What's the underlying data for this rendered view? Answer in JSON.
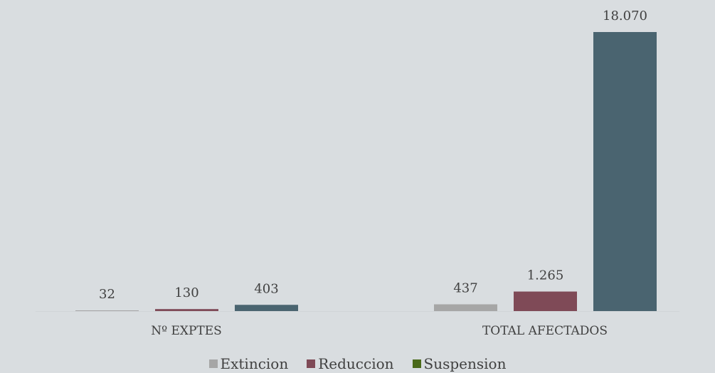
{
  "chart_data": {
    "type": "bar",
    "categories": [
      "Nº EXPTES",
      "TOTAL AFECTADOS"
    ],
    "series": [
      {
        "name": "Extincion",
        "color": "#a6a6a6",
        "values": [
          32,
          437
        ],
        "labels": [
          "32",
          "437"
        ]
      },
      {
        "name": "Reduccion",
        "color": "#7f4a57",
        "values": [
          130,
          1265
        ],
        "labels": [
          "130",
          "1.265"
        ]
      },
      {
        "name": "Suspension",
        "color": "#4a6470",
        "values": [
          403,
          18070
        ],
        "labels": [
          "403",
          "18.070"
        ]
      }
    ],
    "legend_colors": [
      "#a6a6a6",
      "#7f4a57",
      "#4a6a1a"
    ],
    "ylim": [
      0,
      18070
    ],
    "grid": false,
    "legend_position": "bottom"
  }
}
